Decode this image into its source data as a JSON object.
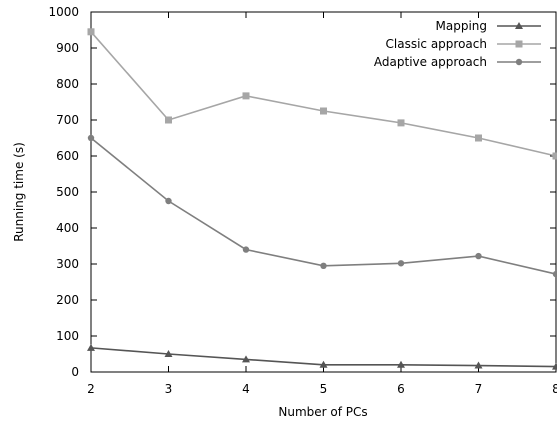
{
  "chart_data": {
    "type": "line",
    "xlabel": "Number of PCs",
    "ylabel": "Running time (s)",
    "x": [
      2,
      3,
      4,
      5,
      6,
      7,
      8
    ],
    "xlim": [
      2,
      8
    ],
    "ylim": [
      0,
      1000
    ],
    "xticks": [
      "2",
      "3",
      "4",
      "5",
      "6",
      "7",
      "8"
    ],
    "yticks": [
      "0",
      "100",
      "200",
      "300",
      "400",
      "500",
      "600",
      "700",
      "800",
      "900",
      "1000"
    ],
    "grid": false,
    "legend_position": "top-right",
    "series": [
      {
        "name": "Mapping",
        "marker": "triangle",
        "color": "#555555",
        "values": [
          67,
          50,
          35,
          20,
          20,
          18,
          15
        ]
      },
      {
        "name": "Classic approach",
        "marker": "square",
        "color": "#a6a6a6",
        "values": [
          945,
          700,
          767,
          725,
          692,
          650,
          600
        ]
      },
      {
        "name": "Adaptive approach",
        "marker": "circle",
        "color": "#7f7f7f",
        "values": [
          650,
          475,
          340,
          295,
          302,
          322,
          272
        ]
      }
    ]
  }
}
